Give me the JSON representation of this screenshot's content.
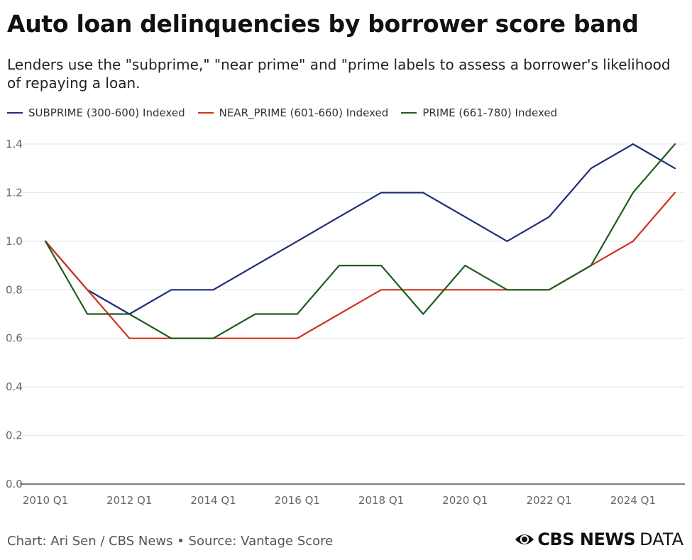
{
  "title": "Auto loan delinquencies by borrower score band",
  "subtitle": "Lenders use the \"subprime,\" \"near prime\" and \"prime labels to assess a borrower's likelihood of repaying a loan.",
  "footer": "Chart: Ari Sen / CBS News • Source: Vantage Score",
  "brand": {
    "icon": "cbs-eye-icon",
    "bold": "CBS NEWS",
    "light": "DATA"
  },
  "chart_data": {
    "type": "line",
    "title": "Auto loan delinquencies by borrower score band",
    "xlabel": "",
    "ylabel": "",
    "x": [
      "2010 Q1",
      "2011 Q1",
      "2012 Q1",
      "2013 Q1",
      "2014 Q1",
      "2015 Q1",
      "2016 Q1",
      "2017 Q1",
      "2018 Q1",
      "2019 Q1",
      "2020 Q1",
      "2021 Q1",
      "2022 Q1",
      "2023 Q1",
      "2024 Q1",
      "2025 Q1"
    ],
    "x_tick_labels": [
      "2010 Q1",
      "2012 Q1",
      "2014 Q1",
      "2016 Q1",
      "2018 Q1",
      "2020 Q1",
      "2022 Q1",
      "2024 Q1"
    ],
    "ylim": [
      0,
      1.4
    ],
    "y_ticks": [
      "0.0",
      "0.2",
      "0.4",
      "0.6",
      "0.8",
      "1.0",
      "1.2",
      "1.4"
    ],
    "grid": true,
    "legend_position": "top",
    "series": [
      {
        "name": "SUBPRIME (300-600) Indexed",
        "color": "#1f2d7a",
        "values": [
          1.0,
          0.8,
          0.7,
          0.8,
          0.8,
          0.9,
          1.0,
          1.1,
          1.2,
          1.2,
          1.1,
          1.0,
          1.1,
          1.3,
          1.4,
          1.3
        ]
      },
      {
        "name": "NEAR_PRIME (601-660) Indexed",
        "color": "#d0321e",
        "values": [
          1.0,
          0.8,
          0.6,
          0.6,
          0.6,
          0.6,
          0.6,
          0.7,
          0.8,
          0.8,
          0.8,
          0.8,
          0.8,
          0.9,
          1.0,
          1.2
        ]
      },
      {
        "name": "PRIME (661-780) Indexed",
        "color": "#1d5e1d",
        "values": [
          1.0,
          0.7,
          0.7,
          0.6,
          0.6,
          0.7,
          0.7,
          0.9,
          0.9,
          0.7,
          0.9,
          0.8,
          0.8,
          0.9,
          1.2,
          1.4
        ]
      }
    ]
  }
}
